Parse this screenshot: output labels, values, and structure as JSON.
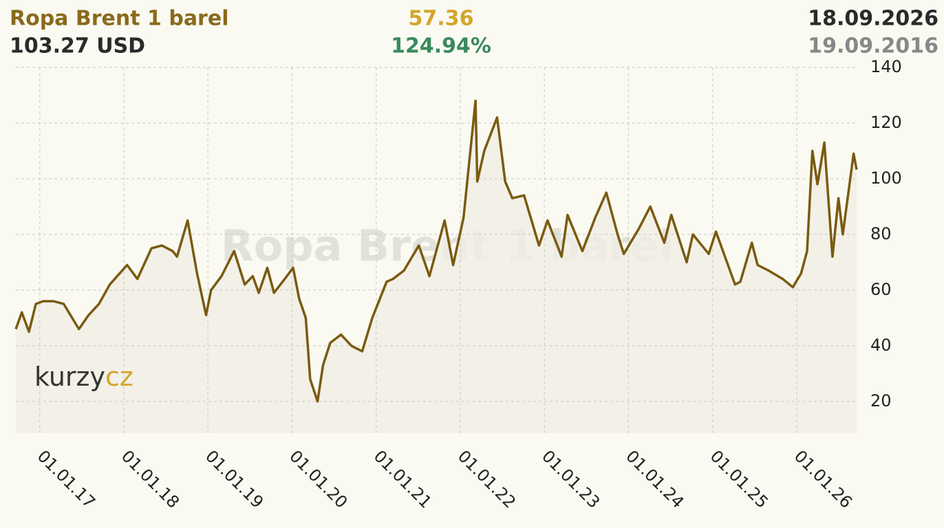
{
  "chart_data": {
    "type": "line",
    "title": "Ropa Brent 1 barel",
    "annotations": {
      "price": "103.27 USD",
      "change": "57.36",
      "change_percent": "124.94%",
      "date_end": "18.09.2026",
      "date_start": "19.09.2016"
    },
    "logo": [
      "kurzy",
      "cz"
    ],
    "x": [
      "2016-09-19",
      "2016-10-15",
      "2016-11-15",
      "2016-12-15",
      "2017-01-15",
      "2017-03-01",
      "2017-04-15",
      "2017-06-20",
      "2017-08-01",
      "2017-09-15",
      "2017-11-01",
      "2018-01-15",
      "2018-03-01",
      "2018-05-01",
      "2018-06-15",
      "2018-08-01",
      "2018-08-20",
      "2018-10-05",
      "2018-11-15",
      "2018-12-24",
      "2019-01-15",
      "2019-03-01",
      "2019-04-25",
      "2019-06-10",
      "2019-07-15",
      "2019-08-10",
      "2019-09-16",
      "2019-10-15",
      "2019-12-01",
      "2020-01-06",
      "2020-02-01",
      "2020-03-01",
      "2020-03-20",
      "2020-04-21",
      "2020-05-15",
      "2020-06-15",
      "2020-08-01",
      "2020-09-15",
      "2020-11-01",
      "2020-12-15",
      "2021-02-15",
      "2021-03-15",
      "2021-05-01",
      "2021-07-05",
      "2021-08-20",
      "2021-10-25",
      "2021-12-01",
      "2022-01-15",
      "2022-03-08",
      "2022-03-16",
      "2022-04-15",
      "2022-06-10",
      "2022-07-15",
      "2022-08-15",
      "2022-10-05",
      "2022-12-09",
      "2023-01-15",
      "2023-03-17",
      "2023-04-12",
      "2023-06-15",
      "2023-08-10",
      "2023-09-27",
      "2023-11-15",
      "2023-12-12",
      "2024-02-15",
      "2024-04-05",
      "2024-06-05",
      "2024-07-05",
      "2024-09-10",
      "2024-10-07",
      "2024-12-15",
      "2025-01-15",
      "2025-04-08",
      "2025-05-01",
      "2025-06-20",
      "2025-07-15",
      "2025-09-01",
      "2025-11-01",
      "2025-12-15",
      "2026-01-20",
      "2026-02-15",
      "2026-03-10",
      "2026-04-01",
      "2026-05-01",
      "2026-06-05",
      "2026-07-01",
      "2026-07-20",
      "2026-08-15",
      "2026-09-05",
      "2026-09-18"
    ],
    "series": [
      {
        "name": "Ropa Brent 1 barel",
        "color": "#7a5a10",
        "values": [
          46,
          52,
          45,
          55,
          56,
          56,
          55,
          46,
          51,
          55,
          62,
          69,
          64,
          75,
          76,
          74,
          72,
          85,
          66,
          51,
          60,
          65,
          74,
          62,
          65,
          59,
          68,
          59,
          64,
          68,
          57,
          50,
          28,
          20,
          33,
          41,
          44,
          40,
          38,
          50,
          63,
          64,
          67,
          76,
          65,
          85,
          69,
          86,
          128,
          99,
          110,
          122,
          99,
          93,
          94,
          76,
          85,
          72,
          87,
          74,
          86,
          95,
          80,
          73,
          82,
          90,
          77,
          87,
          70,
          80,
          73,
          81,
          62,
          63,
          77,
          69,
          67,
          64,
          61,
          66,
          74,
          110,
          98,
          113,
          72,
          93,
          80,
          96,
          109,
          103.27
        ]
      }
    ],
    "xlim": [
      "2016-09-19",
      "2026-09-18"
    ],
    "xticks": [
      {
        "value": "2017-01-01",
        "label": "01.01.17"
      },
      {
        "value": "2018-01-01",
        "label": "01.01.18"
      },
      {
        "value": "2019-01-01",
        "label": "01.01.19"
      },
      {
        "value": "2020-01-01",
        "label": "01.01.20"
      },
      {
        "value": "2021-01-01",
        "label": "01.01.21"
      },
      {
        "value": "2022-01-01",
        "label": "01.01.22"
      },
      {
        "value": "2023-01-01",
        "label": "01.01.23"
      },
      {
        "value": "2024-01-01",
        "label": "01.01.24"
      },
      {
        "value": "2025-01-01",
        "label": "01.01.25"
      },
      {
        "value": "2026-01-01",
        "label": "01.01.26"
      }
    ],
    "ylim": [
      8.6,
      140
    ],
    "yticks": [
      20,
      40,
      60,
      80,
      100,
      120,
      140
    ],
    "grid": true
  }
}
